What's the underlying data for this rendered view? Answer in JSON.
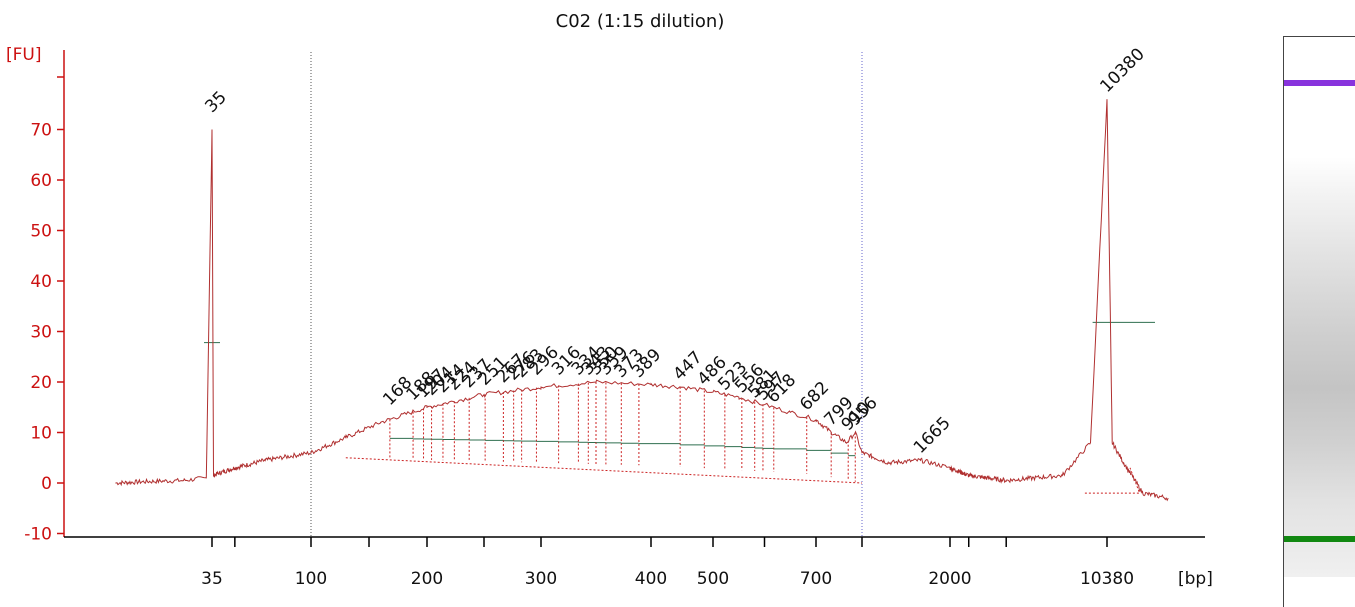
{
  "chart_data": {
    "type": "line",
    "title": "C02 (1:15 dilution)",
    "ylabel": "[FU]",
    "xlabel": "[bp]",
    "ylim": [
      -11,
      80
    ],
    "yticks": [
      -10,
      0,
      10,
      20,
      30,
      40,
      50,
      60,
      70
    ],
    "xticks": [
      {
        "label": "35",
        "bp": 35
      },
      {
        "label": "100",
        "bp": 100
      },
      {
        "label": "200",
        "bp": 200
      },
      {
        "label": "300",
        "bp": 300
      },
      {
        "label": "400",
        "bp": 400
      },
      {
        "label": "500",
        "bp": 500
      },
      {
        "label": "700",
        "bp": 700
      },
      {
        "label": "2000",
        "bp": 2000
      },
      {
        "label": "10380",
        "bp": 10380
      }
    ],
    "xtick_minor_bp": [
      50,
      150,
      250,
      600,
      1000,
      3000,
      5000
    ],
    "grid": false,
    "region_bounds_bp": [
      100,
      1000
    ],
    "trace": [
      [
        18,
        0
      ],
      [
        24,
        0.3
      ],
      [
        30,
        0.5
      ],
      [
        34,
        1
      ],
      [
        35,
        70
      ],
      [
        36,
        1.5
      ],
      [
        40,
        2
      ],
      [
        50,
        3
      ],
      [
        70,
        4.5
      ],
      [
        100,
        6
      ],
      [
        130,
        9
      ],
      [
        160,
        12
      ],
      [
        200,
        15
      ],
      [
        250,
        17.5
      ],
      [
        300,
        19
      ],
      [
        350,
        20
      ],
      [
        400,
        19.5
      ],
      [
        450,
        19
      ],
      [
        500,
        18
      ],
      [
        550,
        17
      ],
      [
        600,
        15.5
      ],
      [
        650,
        14
      ],
      [
        700,
        12.5
      ],
      [
        800,
        10
      ],
      [
        900,
        8
      ],
      [
        956,
        10
      ],
      [
        1000,
        6
      ],
      [
        1300,
        4
      ],
      [
        1665,
        4.5
      ],
      [
        2000,
        3
      ],
      [
        3000,
        1.5
      ],
      [
        5000,
        0.5
      ],
      [
        8000,
        1.5
      ],
      [
        9500,
        8
      ],
      [
        10380,
        76
      ],
      [
        11200,
        8
      ],
      [
        13000,
        4
      ],
      [
        16000,
        -2
      ],
      [
        20000,
        -3
      ]
    ],
    "peak_labels": [
      {
        "label": "35",
        "bp": 35,
        "fu": 72,
        "color": "#1a7a1a"
      },
      {
        "label": "168",
        "bp": 168,
        "fu": 14
      },
      {
        "label": "188",
        "bp": 188,
        "fu": 15
      },
      {
        "label": "197",
        "bp": 197,
        "fu": 15.5
      },
      {
        "label": "204",
        "bp": 204,
        "fu": 16
      },
      {
        "label": "214",
        "bp": 214,
        "fu": 16.5
      },
      {
        "label": "224",
        "bp": 224,
        "fu": 17
      },
      {
        "label": "237",
        "bp": 237,
        "fu": 17.5
      },
      {
        "label": "251",
        "bp": 251,
        "fu": 18
      },
      {
        "label": "267",
        "bp": 267,
        "fu": 18.5
      },
      {
        "label": "276",
        "bp": 276,
        "fu": 19
      },
      {
        "label": "283",
        "bp": 283,
        "fu": 19.5
      },
      {
        "label": "296",
        "bp": 296,
        "fu": 20
      },
      {
        "label": "316",
        "bp": 316,
        "fu": 20
      },
      {
        "label": "334",
        "bp": 334,
        "fu": 20
      },
      {
        "label": "343",
        "bp": 343,
        "fu": 20
      },
      {
        "label": "350",
        "bp": 350,
        "fu": 20
      },
      {
        "label": "359",
        "bp": 359,
        "fu": 20
      },
      {
        "label": "373",
        "bp": 373,
        "fu": 19.5
      },
      {
        "label": "389",
        "bp": 389,
        "fu": 19.5
      },
      {
        "label": "447",
        "bp": 447,
        "fu": 19
      },
      {
        "label": "486",
        "bp": 486,
        "fu": 18
      },
      {
        "label": "523",
        "bp": 523,
        "fu": 17
      },
      {
        "label": "556",
        "bp": 556,
        "fu": 16.5
      },
      {
        "label": "581",
        "bp": 581,
        "fu": 15.5
      },
      {
        "label": "597",
        "bp": 597,
        "fu": 15
      },
      {
        "label": "618",
        "bp": 618,
        "fu": 14.5
      },
      {
        "label": "682",
        "bp": 682,
        "fu": 13
      },
      {
        "label": "799",
        "bp": 799,
        "fu": 10
      },
      {
        "label": "910",
        "bp": 910,
        "fu": 9
      },
      {
        "label": "956",
        "bp": 956,
        "fu": 10
      },
      {
        "label": "1665",
        "bp": 1665,
        "fu": 4.5
      },
      {
        "label": "10380",
        "bp": 10380,
        "fu": 76,
        "color": "#9933ee"
      }
    ],
    "peak_width_markers": [
      {
        "bp": 35,
        "fu": 27.8
      },
      {
        "bp": 10380,
        "fu": 31.8
      }
    ],
    "colors": {
      "trace": "#b03030",
      "axis": "#cc1111",
      "baseline": "#cc2222",
      "area_fill_line": "#2f6f4f",
      "lower_marker": "#1a7a1a",
      "upper_marker": "#9933ee",
      "region_line_left": "#555555",
      "region_line_right": "#6666cc"
    }
  },
  "gel": {
    "bands": [
      {
        "position": 0.08,
        "color": "#8833dd"
      },
      {
        "position": 0.88,
        "color": "#118811"
      }
    ]
  }
}
